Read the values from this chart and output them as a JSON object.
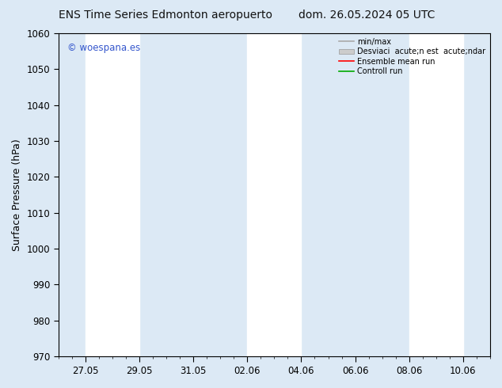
{
  "title_left": "ENS Time Series Edmonton aeropuerto",
  "title_right": "dom. 26.05.2024 05 UTC",
  "ylabel": "Surface Pressure (hPa)",
  "ylim": [
    970,
    1060
  ],
  "yticks": [
    970,
    980,
    990,
    1000,
    1010,
    1020,
    1030,
    1040,
    1050,
    1060
  ],
  "xtick_labels": [
    "27.05",
    "29.05",
    "31.05",
    "02.06",
    "04.06",
    "06.06",
    "08.06",
    "10.06"
  ],
  "watermark": "© woespana.es",
  "watermark_color": "#3355cc",
  "bg_color": "#dce9f5",
  "plot_bg_color": "#dce9f5",
  "shaded_bands_color": "#ffffff",
  "legend_label_minmax": "min/max",
  "legend_label_std": "Desviaci  acute;n est  acute;ndar",
  "legend_label_ensemble": "Ensemble mean run",
  "legend_label_control": "Controll run",
  "legend_color_minmax": "#aaaaaa",
  "legend_color_std": "#cccccc",
  "legend_color_ensemble": "#ff0000",
  "legend_color_control": "#00aa00",
  "title_fontsize": 10,
  "tick_fontsize": 8.5,
  "ylabel_fontsize": 9,
  "watermark_fontsize": 8.5,
  "shaded_ranges": [
    [
      0,
      1
    ],
    [
      3,
      4
    ],
    [
      6,
      7
    ]
  ]
}
